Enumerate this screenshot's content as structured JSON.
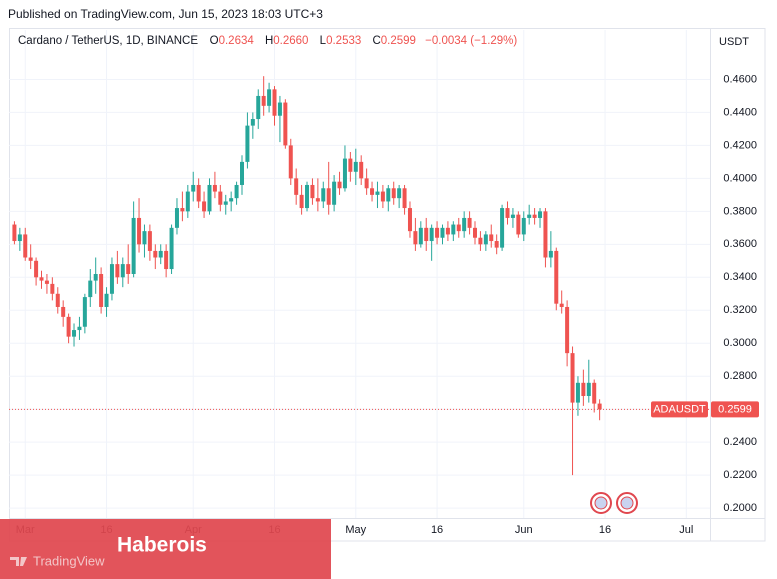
{
  "published": "Published on TradingView.com, Jun 15, 2023 18:03 UTC+3",
  "watermark": "TradingView",
  "overlay_text": "Haberois",
  "chart_data": {
    "type": "candlestick",
    "legend": {
      "symbol": "Cardano / TetherUS, 1D, BINANCE",
      "ohlc": [
        {
          "key": "O",
          "value": "0.2634"
        },
        {
          "key": "H",
          "value": "0.2660"
        },
        {
          "key": "L",
          "value": "0.2533"
        },
        {
          "key": "C",
          "value": "0.2599"
        }
      ],
      "change": "−0.0034 (−1.29%)"
    },
    "y_axis_label": "USDT",
    "up_color": "#26a69a",
    "down_color": "#ef5350",
    "x": [
      "02-27",
      "02-28",
      "03-01",
      "03-02",
      "03-03",
      "03-04",
      "03-05",
      "03-06",
      "03-07",
      "03-08",
      "03-09",
      "03-10",
      "03-11",
      "03-12",
      "03-13",
      "03-14",
      "03-15",
      "03-16",
      "03-17",
      "03-18",
      "03-19",
      "03-20",
      "03-21",
      "03-22",
      "03-23",
      "03-24",
      "03-25",
      "03-26",
      "03-27",
      "03-28",
      "03-29",
      "03-30",
      "03-31",
      "04-01",
      "04-02",
      "04-03",
      "04-04",
      "04-05",
      "04-06",
      "04-07",
      "04-08",
      "04-09",
      "04-10",
      "04-11",
      "04-12",
      "04-13",
      "04-14",
      "04-15",
      "04-16",
      "04-17",
      "04-18",
      "04-19",
      "04-20",
      "04-21",
      "04-22",
      "04-23",
      "04-24",
      "04-25",
      "04-26",
      "04-27",
      "04-28",
      "04-29",
      "04-30",
      "05-01",
      "05-02",
      "05-03",
      "05-04",
      "05-05",
      "05-06",
      "05-07",
      "05-08",
      "05-09",
      "05-10",
      "05-11",
      "05-12",
      "05-13",
      "05-14",
      "05-15",
      "05-16",
      "05-17",
      "05-18",
      "05-19",
      "05-20",
      "05-21",
      "05-22",
      "05-23",
      "05-24",
      "05-25",
      "05-26",
      "05-27",
      "05-28",
      "05-29",
      "05-30",
      "05-31",
      "06-01",
      "06-02",
      "06-03",
      "06-04",
      "06-05",
      "06-06",
      "06-07",
      "06-08",
      "06-09",
      "06-10",
      "06-11",
      "06-12",
      "06-13",
      "06-14",
      "06-15"
    ],
    "open": [
      0.372,
      0.362,
      0.366,
      0.352,
      0.35,
      0.34,
      0.338,
      0.336,
      0.33,
      0.322,
      0.316,
      0.304,
      0.308,
      0.31,
      0.328,
      0.338,
      0.342,
      0.322,
      0.33,
      0.348,
      0.34,
      0.348,
      0.342,
      0.376,
      0.36,
      0.368,
      0.356,
      0.352,
      0.356,
      0.345,
      0.37,
      0.382,
      0.38,
      0.392,
      0.396,
      0.386,
      0.38,
      0.396,
      0.392,
      0.384,
      0.386,
      0.388,
      0.396,
      0.41,
      0.432,
      0.436,
      0.45,
      0.444,
      0.454,
      0.438,
      0.446,
      0.42,
      0.4,
      0.39,
      0.382,
      0.396,
      0.388,
      0.386,
      0.394,
      0.384,
      0.398,
      0.394,
      0.412,
      0.404,
      0.41,
      0.4,
      0.394,
      0.39,
      0.392,
      0.386,
      0.394,
      0.388,
      0.394,
      0.382,
      0.368,
      0.36,
      0.37,
      0.362,
      0.37,
      0.364,
      0.37,
      0.366,
      0.372,
      0.368,
      0.376,
      0.37,
      0.364,
      0.36,
      0.366,
      0.362,
      0.358,
      0.382,
      0.376,
      0.378,
      0.366,
      0.376,
      0.378,
      0.376,
      0.38,
      0.352,
      0.356,
      0.324,
      0.322,
      0.294,
      0.264,
      0.276,
      0.268,
      0.276,
      0.2634
    ],
    "high": [
      0.374,
      0.37,
      0.37,
      0.36,
      0.352,
      0.344,
      0.342,
      0.34,
      0.334,
      0.326,
      0.318,
      0.312,
      0.316,
      0.33,
      0.345,
      0.352,
      0.346,
      0.334,
      0.352,
      0.356,
      0.352,
      0.36,
      0.386,
      0.388,
      0.372,
      0.372,
      0.36,
      0.36,
      0.36,
      0.372,
      0.388,
      0.392,
      0.396,
      0.404,
      0.4,
      0.392,
      0.4,
      0.404,
      0.396,
      0.39,
      0.392,
      0.398,
      0.414,
      0.44,
      0.44,
      0.454,
      0.462,
      0.458,
      0.456,
      0.45,
      0.448,
      0.424,
      0.406,
      0.396,
      0.398,
      0.4,
      0.4,
      0.398,
      0.41,
      0.402,
      0.404,
      0.42,
      0.416,
      0.418,
      0.414,
      0.406,
      0.398,
      0.398,
      0.396,
      0.396,
      0.398,
      0.396,
      0.396,
      0.386,
      0.376,
      0.374,
      0.376,
      0.372,
      0.374,
      0.372,
      0.374,
      0.374,
      0.376,
      0.38,
      0.38,
      0.374,
      0.368,
      0.368,
      0.372,
      0.366,
      0.384,
      0.386,
      0.382,
      0.38,
      0.38,
      0.384,
      0.382,
      0.382,
      0.382,
      0.368,
      0.358,
      0.332,
      0.326,
      0.298,
      0.28,
      0.284,
      0.29,
      0.278,
      0.266
    ],
    "low": [
      0.36,
      0.356,
      0.35,
      0.345,
      0.335,
      0.333,
      0.33,
      0.326,
      0.318,
      0.31,
      0.3,
      0.298,
      0.302,
      0.306,
      0.322,
      0.33,
      0.318,
      0.316,
      0.326,
      0.336,
      0.334,
      0.336,
      0.34,
      0.355,
      0.352,
      0.35,
      0.345,
      0.348,
      0.34,
      0.342,
      0.366,
      0.374,
      0.376,
      0.386,
      0.382,
      0.376,
      0.378,
      0.388,
      0.38,
      0.378,
      0.38,
      0.384,
      0.39,
      0.406,
      0.424,
      0.43,
      0.438,
      0.44,
      0.432,
      0.422,
      0.418,
      0.396,
      0.384,
      0.378,
      0.38,
      0.384,
      0.38,
      0.382,
      0.378,
      0.38,
      0.39,
      0.392,
      0.398,
      0.396,
      0.396,
      0.39,
      0.386,
      0.382,
      0.382,
      0.38,
      0.384,
      0.382,
      0.378,
      0.364,
      0.356,
      0.358,
      0.356,
      0.35,
      0.36,
      0.36,
      0.362,
      0.362,
      0.364,
      0.364,
      0.366,
      0.36,
      0.356,
      0.356,
      0.358,
      0.354,
      0.356,
      0.372,
      0.37,
      0.364,
      0.362,
      0.372,
      0.372,
      0.37,
      0.346,
      0.346,
      0.32,
      0.318,
      0.286,
      0.22,
      0.256,
      0.262,
      0.264,
      0.258,
      0.2533
    ],
    "close": [
      0.362,
      0.366,
      0.352,
      0.35,
      0.34,
      0.338,
      0.336,
      0.33,
      0.322,
      0.316,
      0.304,
      0.308,
      0.31,
      0.328,
      0.338,
      0.342,
      0.322,
      0.33,
      0.348,
      0.34,
      0.348,
      0.342,
      0.376,
      0.36,
      0.368,
      0.356,
      0.352,
      0.356,
      0.345,
      0.37,
      0.382,
      0.38,
      0.392,
      0.396,
      0.386,
      0.38,
      0.396,
      0.392,
      0.384,
      0.386,
      0.388,
      0.396,
      0.41,
      0.432,
      0.436,
      0.45,
      0.444,
      0.454,
      0.438,
      0.446,
      0.42,
      0.4,
      0.39,
      0.382,
      0.396,
      0.388,
      0.386,
      0.394,
      0.384,
      0.398,
      0.394,
      0.412,
      0.404,
      0.41,
      0.4,
      0.394,
      0.39,
      0.392,
      0.386,
      0.394,
      0.388,
      0.394,
      0.382,
      0.368,
      0.36,
      0.37,
      0.362,
      0.37,
      0.364,
      0.37,
      0.366,
      0.372,
      0.368,
      0.376,
      0.37,
      0.364,
      0.36,
      0.366,
      0.362,
      0.358,
      0.382,
      0.376,
      0.378,
      0.366,
      0.376,
      0.378,
      0.376,
      0.38,
      0.352,
      0.356,
      0.324,
      0.322,
      0.294,
      0.264,
      0.276,
      0.268,
      0.276,
      0.2634,
      0.2599
    ],
    "xlim": [
      "02-26",
      "07-05"
    ],
    "xticks": [
      {
        "value": "03-01",
        "label": "Mar"
      },
      {
        "value": "03-16",
        "label": "16"
      },
      {
        "value": "04-01",
        "label": "Apr"
      },
      {
        "value": "04-16",
        "label": "16"
      },
      {
        "value": "05-01",
        "label": "May"
      },
      {
        "value": "05-16",
        "label": "16"
      },
      {
        "value": "06-01",
        "label": "Jun"
      },
      {
        "value": "06-16",
        "label": "16"
      },
      {
        "value": "07-01",
        "label": "Jul"
      }
    ],
    "ylim": [
      0.194,
      0.49
    ],
    "yticks": [
      {
        "value": 0.2,
        "label": "0.2000"
      },
      {
        "value": 0.22,
        "label": "0.2200"
      },
      {
        "value": 0.24,
        "label": "0.2400"
      },
      {
        "value": 0.26,
        "label": "0.2600"
      },
      {
        "value": 0.28,
        "label": "0.2800"
      },
      {
        "value": 0.3,
        "label": "0.3000"
      },
      {
        "value": 0.32,
        "label": "0.3200"
      },
      {
        "value": 0.34,
        "label": "0.3400"
      },
      {
        "value": 0.36,
        "label": "0.3600"
      },
      {
        "value": 0.38,
        "label": "0.3800"
      },
      {
        "value": 0.4,
        "label": "0.4000"
      },
      {
        "value": 0.42,
        "label": "0.4200"
      },
      {
        "value": 0.44,
        "label": "0.4400"
      },
      {
        "value": 0.46,
        "label": "0.4600"
      }
    ],
    "grid": true,
    "price_line": {
      "name": "ADAUSDT",
      "value": 0.2599,
      "label": "0.2599"
    }
  }
}
